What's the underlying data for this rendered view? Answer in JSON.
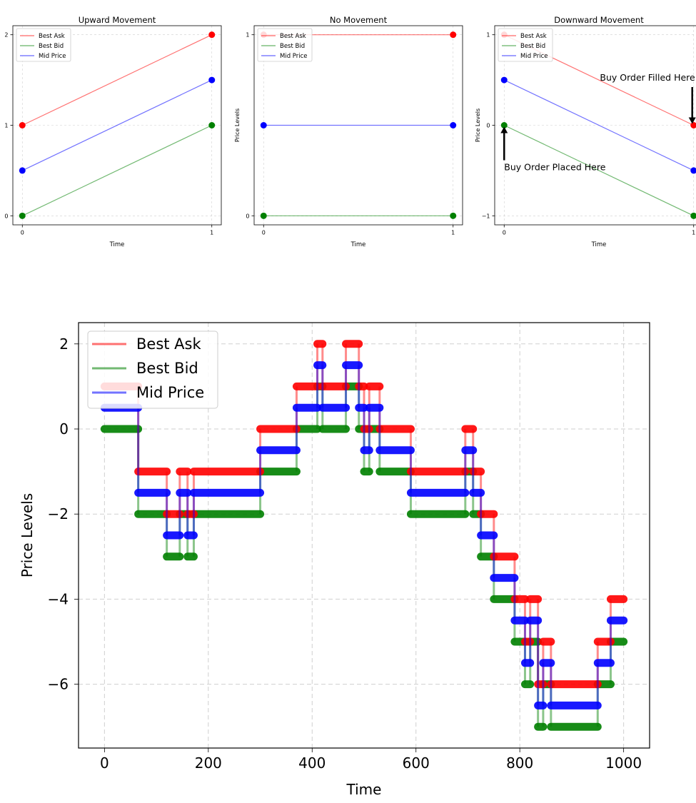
{
  "colors": {
    "ask": "#ff0000",
    "bid": "#008000",
    "mid": "#0000ff",
    "grid": "#b0b0b0",
    "text": "#000000"
  },
  "chart_data": [
    {
      "type": "line",
      "title": "Upward Movement",
      "xlabel": "Time",
      "ylabel": "",
      "x": [
        0,
        1
      ],
      "xticks": [
        0,
        1
      ],
      "yticks": [
        0,
        1,
        2
      ],
      "xlim": [
        -0.05,
        1.05
      ],
      "ylim": [
        -0.1,
        2.1
      ],
      "legend_loc": "top-left",
      "series": [
        {
          "name": "Best Ask",
          "values": [
            1,
            2
          ],
          "key": "ask"
        },
        {
          "name": "Best Bid",
          "values": [
            0,
            1
          ],
          "key": "bid"
        },
        {
          "name": "Mid Price",
          "values": [
            0.5,
            1.5
          ],
          "key": "mid"
        }
      ]
    },
    {
      "type": "line",
      "title": "No Movement",
      "xlabel": "Time",
      "ylabel": "Price Levels",
      "x": [
        0,
        1
      ],
      "xticks": [
        0,
        1
      ],
      "yticks": [
        0,
        1
      ],
      "xlim": [
        -0.05,
        1.05
      ],
      "ylim": [
        -0.05,
        1.05
      ],
      "legend_loc": "top-left",
      "series": [
        {
          "name": "Best Ask",
          "values": [
            1,
            1
          ],
          "key": "ask"
        },
        {
          "name": "Best Bid",
          "values": [
            0,
            0
          ],
          "key": "bid"
        },
        {
          "name": "Mid Price",
          "values": [
            0.5,
            0.5
          ],
          "key": "mid"
        }
      ]
    },
    {
      "type": "line",
      "title": "Downward Movement",
      "xlabel": "Time",
      "ylabel": "Price Levels",
      "x": [
        0,
        1
      ],
      "xticks": [
        0,
        1
      ],
      "yticks": [
        -1,
        0,
        1
      ],
      "xlim": [
        -0.05,
        1.05
      ],
      "ylim": [
        -1.1,
        1.1
      ],
      "legend_loc": "top-left",
      "series": [
        {
          "name": "Best Ask",
          "values": [
            1,
            0
          ],
          "key": "ask"
        },
        {
          "name": "Best Bid",
          "values": [
            0,
            -1
          ],
          "key": "bid"
        },
        {
          "name": "Mid Price",
          "values": [
            0.5,
            -0.5
          ],
          "key": "mid"
        }
      ],
      "annotations": [
        {
          "text": "Buy Order Filled Here",
          "x": 1,
          "y": 0
        },
        {
          "text": "Buy Order Placed Here",
          "x": 0,
          "y": 0
        }
      ]
    },
    {
      "type": "line",
      "step": true,
      "title": "",
      "xlabel": "Time",
      "ylabel": "Price Levels",
      "xticks": [
        0,
        200,
        400,
        600,
        800,
        1000
      ],
      "yticks": [
        2,
        0,
        -2,
        -4,
        -6
      ],
      "xlim": [
        -50,
        1050
      ],
      "ylim": [
        -7.5,
        2.5
      ],
      "legend_loc": "top-left",
      "legend": [
        "Best Ask",
        "Best Bid",
        "Mid Price"
      ],
      "segments": [
        [
          0,
          65,
          1
        ],
        [
          65,
          120,
          -1
        ],
        [
          120,
          145,
          -2
        ],
        [
          145,
          160,
          -1
        ],
        [
          160,
          172,
          -2
        ],
        [
          172,
          300,
          -1
        ],
        [
          300,
          370,
          0
        ],
        [
          370,
          410,
          1
        ],
        [
          410,
          420,
          2
        ],
        [
          420,
          465,
          1
        ],
        [
          465,
          490,
          2
        ],
        [
          490,
          500,
          1
        ],
        [
          500,
          510,
          0
        ],
        [
          510,
          530,
          1
        ],
        [
          530,
          590,
          0
        ],
        [
          590,
          695,
          -1
        ],
        [
          695,
          710,
          0
        ],
        [
          710,
          725,
          -1
        ],
        [
          725,
          750,
          -2
        ],
        [
          750,
          790,
          -3
        ],
        [
          790,
          810,
          -4
        ],
        [
          810,
          820,
          -5
        ],
        [
          820,
          835,
          -4
        ],
        [
          835,
          845,
          -6
        ],
        [
          845,
          860,
          -5
        ],
        [
          860,
          950,
          -6
        ],
        [
          950,
          975,
          -5
        ],
        [
          975,
          1000,
          -4
        ]
      ]
    }
  ]
}
